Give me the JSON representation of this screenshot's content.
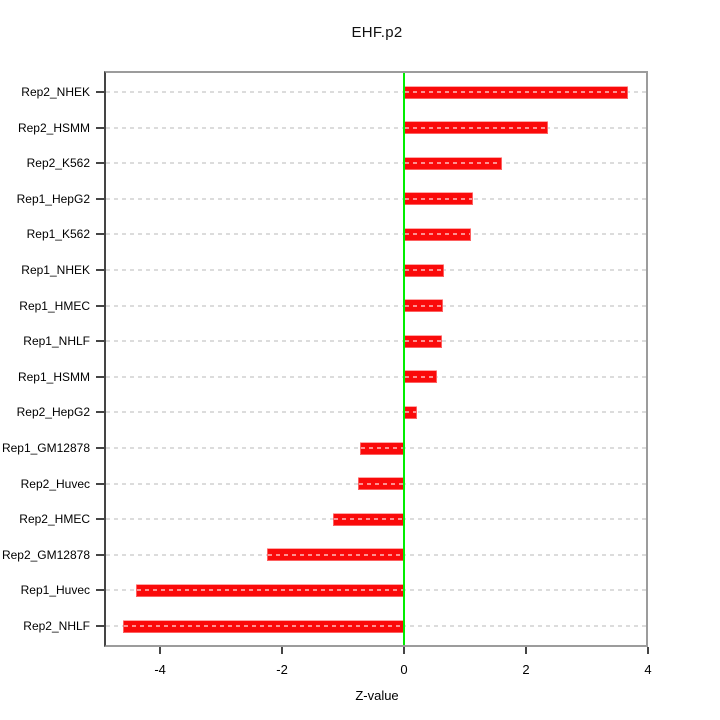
{
  "chart_data": {
    "type": "bar",
    "orientation": "horizontal",
    "title": "EHF.p2",
    "xlabel": "Z-value",
    "ylabel": "",
    "categories": [
      "Rep2_NHEK",
      "Rep2_HSMM",
      "Rep2_K562",
      "Rep1_HepG2",
      "Rep1_K562",
      "Rep1_NHEK",
      "Rep1_HMEC",
      "Rep1_NHLF",
      "Rep1_HSMM",
      "Rep2_HepG2",
      "Rep1_GM12878",
      "Rep2_Huvec",
      "Rep2_HMEC",
      "Rep2_GM12878",
      "Rep1_Huvec",
      "Rep2_NHLF"
    ],
    "values": [
      3.67,
      2.36,
      1.61,
      1.13,
      1.09,
      0.66,
      0.64,
      0.63,
      0.54,
      0.22,
      -0.72,
      -0.75,
      -1.16,
      -2.25,
      -4.39,
      -4.61
    ],
    "xticks": [
      -4,
      -2,
      0,
      2,
      4
    ],
    "xtick_labels": [
      "-4",
      "-2",
      "0",
      "2",
      "4"
    ],
    "xlim": [
      -4.92,
      4.0
    ],
    "grid": "horizontal-dashed",
    "legend": "none",
    "colors": {
      "bar": "#fa0a0a",
      "bar_dash": "#ff9d9d",
      "zero_line": "#00ee00",
      "grid_line": "#dcdcdc",
      "box_border": "#9c9c9c",
      "axis": "#454545",
      "text": "#000000",
      "background": "#ffffff"
    }
  }
}
